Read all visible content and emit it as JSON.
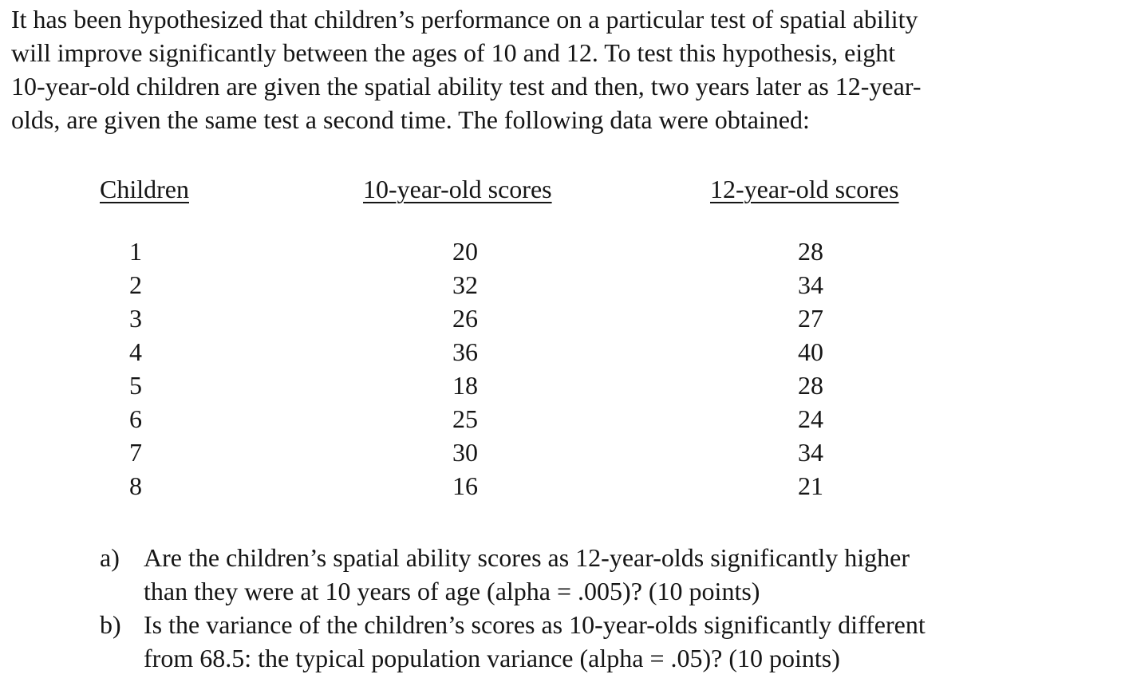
{
  "page": {
    "background": "#ffffff",
    "text_color": "#151515"
  },
  "intro": {
    "lines": [
      "It has been hypothesized that children’s performance on a particular test of spatial ability",
      "will improve significantly between the ages of 10 and 12. To test this hypothesis, eight",
      "10-year-old children are given the spatial ability test and then, two years later as 12-year-",
      "olds, are given the same test a second time. The following data were obtained:"
    ]
  },
  "table": {
    "headers": {
      "children": "Children",
      "age10": "10-year-old scores",
      "age12": "12-year-old scores"
    },
    "rows": [
      {
        "child": "1",
        "score10": "20",
        "score12": "28"
      },
      {
        "child": "2",
        "score10": "32",
        "score12": "34"
      },
      {
        "child": "3",
        "score10": "26",
        "score12": "27"
      },
      {
        "child": "4",
        "score10": "36",
        "score12": "40"
      },
      {
        "child": "5",
        "score10": "18",
        "score12": "28"
      },
      {
        "child": "6",
        "score10": "25",
        "score12": "24"
      },
      {
        "child": "7",
        "score10": "30",
        "score12": "34"
      },
      {
        "child": "8",
        "score10": "16",
        "score12": "21"
      }
    ]
  },
  "questions": [
    {
      "label": "a)",
      "lines": [
        "Are the children’s spatial ability scores as 12-year-olds significantly higher",
        "than they were at 10 years of age (alpha = .005)? (10 points)"
      ]
    },
    {
      "label": "b)",
      "lines": [
        "Is the variance of the children’s scores as 10-year-olds significantly different",
        "from 68.5: the typical population variance (alpha = .05)? (10 points)"
      ]
    }
  ]
}
